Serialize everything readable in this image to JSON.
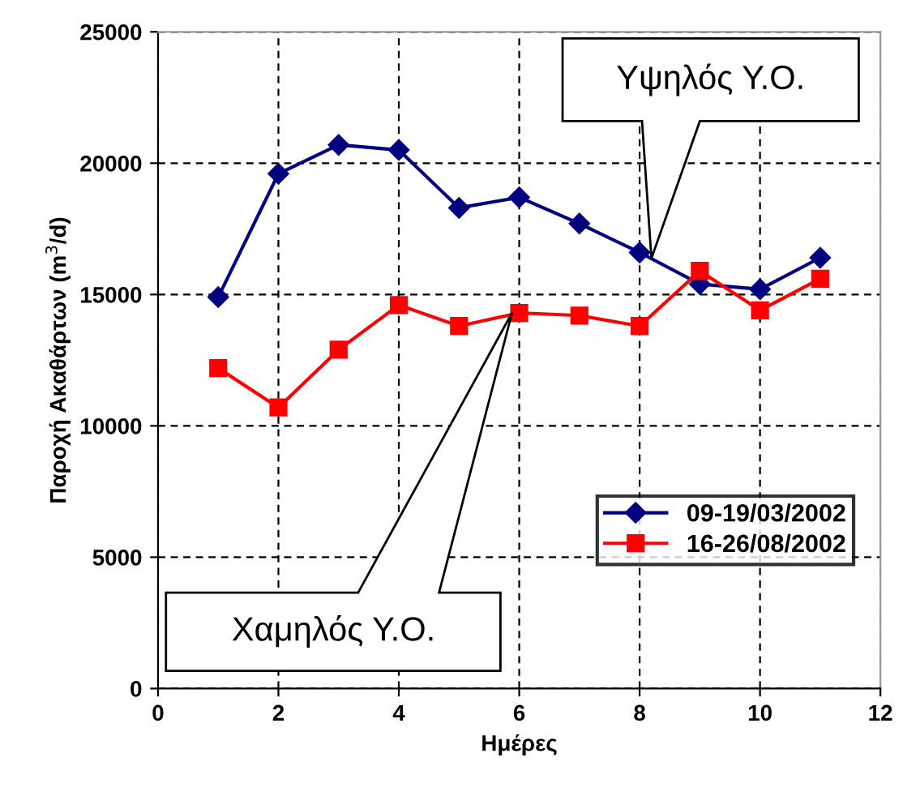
{
  "chart_data": {
    "type": "line",
    "xlabel": "Ημέρες",
    "ylabel": "Παροχή Ακαθάρτων (m$^{3}$/d)",
    "x": [
      1,
      2,
      3,
      4,
      5,
      6,
      7,
      8,
      9,
      10,
      11
    ],
    "series": [
      {
        "name": "09-19/03/2002",
        "color": "#000080",
        "marker": "diamond",
        "values": [
          14900,
          19600,
          20700,
          20500,
          18300,
          18700,
          17700,
          16600,
          15400,
          15200,
          16400
        ]
      },
      {
        "name": "16-26/08/2002",
        "color": "#ff0000",
        "marker": "square",
        "values": [
          12200,
          10700,
          12900,
          14600,
          13800,
          14300,
          14200,
          13800,
          15900,
          14400,
          15600
        ]
      }
    ],
    "xlim": [
      0,
      12
    ],
    "xticks": [
      0,
      2,
      4,
      6,
      8,
      10,
      12
    ],
    "ylim": [
      0,
      25000
    ],
    "yticks": [
      0,
      5000,
      10000,
      15000,
      20000,
      25000
    ],
    "grid": true,
    "line_style": "solid",
    "legend": "bottom right",
    "annotations": [
      "Υψηλός Υ.Ο.",
      "Χαμηλός Υ.Ο."
    ]
  }
}
